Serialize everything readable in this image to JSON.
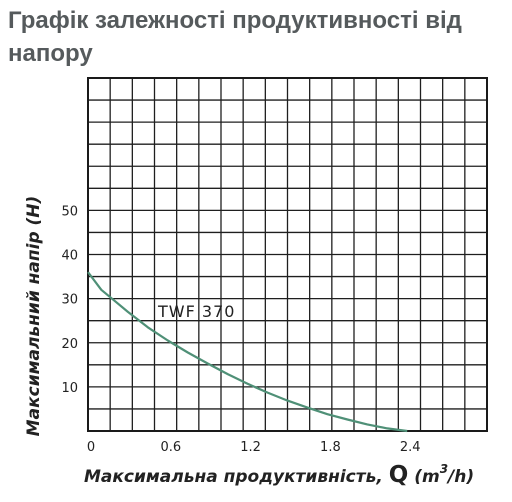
{
  "title": "Графік залежності продуктивності від напору",
  "chart_data": {
    "type": "line",
    "title": "Графік залежності продуктивності від напору",
    "xlabel": "Максимальна продуктивність, Q (m³/h)",
    "xlabel_parts": {
      "text": "Максимальна продуктивність, ",
      "q": "Q",
      "unit_open": " (m",
      "unit_sup": "3",
      "unit_close": "/h)"
    },
    "ylabel": "Максимальний напір (H)",
    "xlim": [
      0,
      3.0
    ],
    "ylim": [
      0,
      80
    ],
    "x_ticks": [
      "0",
      "0.6",
      "1.2",
      "1.8",
      "2.4"
    ],
    "y_ticks": [
      "10",
      "20",
      "30",
      "40",
      "50"
    ],
    "grid": true,
    "series": [
      {
        "name": "TWF 370",
        "color": "#4f9077",
        "x": [
          0,
          0.1,
          0.2,
          0.3,
          0.45,
          0.6,
          0.75,
          0.9,
          1.05,
          1.2,
          1.35,
          1.5,
          1.65,
          1.8,
          1.95,
          2.1,
          2.25,
          2.35,
          2.4
        ],
        "y": [
          36,
          32,
          29.5,
          27,
          23.5,
          20.5,
          17.8,
          15.3,
          12.9,
          10.7,
          8.7,
          6.9,
          5.3,
          3.8,
          2.6,
          1.5,
          0.6,
          0.2,
          0
        ]
      }
    ]
  }
}
